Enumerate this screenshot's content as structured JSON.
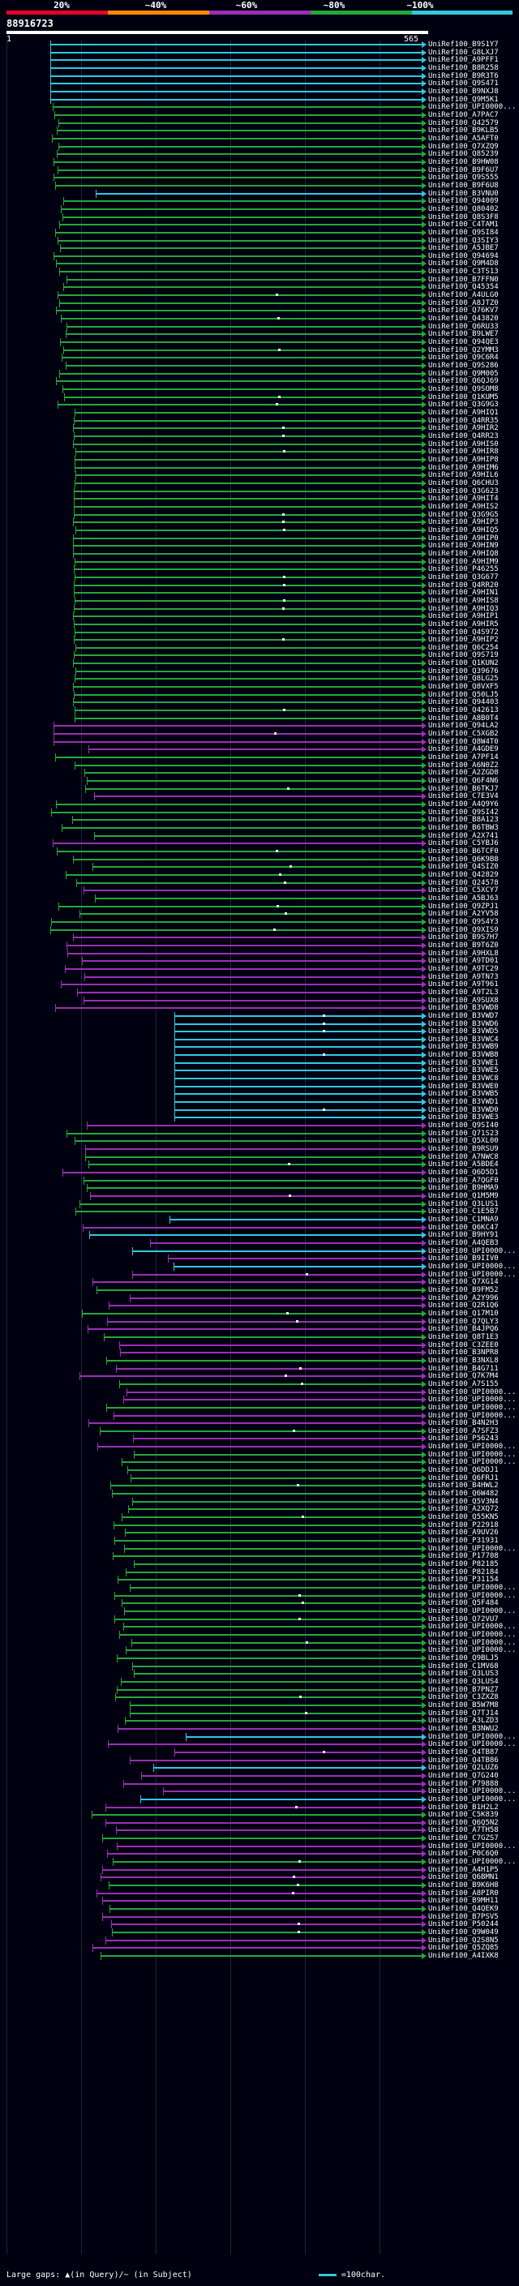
{
  "legend": {
    "labels": [
      "20%",
      "~40%",
      "~60%",
      "~80%",
      "~100%"
    ],
    "colors": [
      "#e8002a",
      "#ff8a00",
      "#9b2fb4",
      "#22a83a",
      "#30c8e0"
    ]
  },
  "query": {
    "id": "88916723",
    "start": "1",
    "end": "565"
  },
  "footer": {
    "large_gaps": "Large gaps: ▲(in Query)/~ (in Subject)",
    "scale": "=100char."
  },
  "hits": [
    "UniRef100_B9S1Y7",
    "UniRef100_G8LXJ7",
    "UniRef100_A9PFF1",
    "UniRef100_B8R258",
    "UniRef100_B9R3T6",
    "UniRef100_Q9S471",
    "UniRef100_B9NXJ8",
    "UniRef100_Q9M5K1",
    "UniRef100_UPI0000...",
    "UniRef100_A7PAC7",
    "UniRef100_Q42579",
    "UniRef100_B9KLB5",
    "UniRef100_A5AFT0",
    "UniRef100_Q7XZQ9",
    "UniRef100_Q85239",
    "UniRef100_B9HW08",
    "UniRef100_B9F6U7",
    "UniRef100_Q9S555",
    "UniRef100_B9F6U8",
    "UniRef100_B3VNU0",
    "UniRef100_Q94009",
    "UniRef100_Q80402",
    "UniRef100_Q8S3F8",
    "UniRef100_C4TAM1",
    "UniRef100_Q9SI84",
    "UniRef100_Q3SIY3",
    "UniRef100_A5JBE7",
    "UniRef100_Q94694",
    "UniRef100_Q9M4D8",
    "UniRef100_C3TS13",
    "UniRef100_B7FFN0",
    "UniRef100_Q45354",
    "UniRef100_A4ULG0",
    "UniRef100_A8JTZ0",
    "UniRef100_Q76KV7",
    "UniRef100_Q43820",
    "UniRef100_Q6RU33",
    "UniRef100_B9LWE7",
    "UniRef100_Q94QE3",
    "UniRef100_Q2YMM3",
    "UniRef100_Q9C6R4",
    "UniRef100_Q9S286",
    "UniRef100_Q9M005",
    "UniRef100_Q6QJ69",
    "UniRef100_Q9SOM8",
    "UniRef100_Q1KUM5",
    "UniRef100_Q3G9G3",
    "UniRef100_A9HIQ1",
    "UniRef100_Q4RR35",
    "UniRef100_A9HIR2",
    "UniRef100_Q4RR23",
    "UniRef100_A9HIS0",
    "UniRef100_A9HIR8",
    "UniRef100_A9HIP8",
    "UniRef100_A9HIM6",
    "UniRef100_A9HIL6",
    "UniRef100_Q6CHU3",
    "UniRef100_Q3G623",
    "UniRef100_A9HIT4",
    "UniRef100_A9HIS2",
    "UniRef100_Q3G9G5",
    "UniRef100_A9HIP3",
    "UniRef100_A9HIQ5",
    "UniRef100_A9HIP0",
    "UniRef100_A9HIN9",
    "UniRef100_A9HIQ8",
    "UniRef100_A9HIM9",
    "UniRef100_P46255",
    "UniRef100_Q3G677",
    "UniRef100_Q4RR20",
    "UniRef100_A9HIN1",
    "UniRef100_A9HIS8",
    "UniRef100_A9HIQ3",
    "UniRef100_A9HIP1",
    "UniRef100_A9HIR5",
    "UniRef100_Q4S972",
    "UniRef100_A9HIP2",
    "UniRef100_Q6C254",
    "UniRef100_Q9S719",
    "UniRef100_Q1KUN2",
    "UniRef100_Q39676",
    "UniRef100_Q8LG25",
    "UniRef100_Q8VXF5",
    "UniRef100_Q50LJ5",
    "UniRef100_Q94403",
    "UniRef100_Q42613",
    "UniRef100_A8B0T4",
    "UniRef100_Q94LA2",
    "UniRef100_C5XGB2",
    "UniRef100_Q8W4T0",
    "UniRef100_A4GDE9",
    "UniRef100_A7PF14",
    "UniRef100_A6N0Z2",
    "UniRef100_A2ZGD8",
    "UniRef100_Q6F4N6",
    "UniRef100_B6TKJ7",
    "UniRef100_C7E3V4",
    "UniRef100_A4Q9Y6",
    "UniRef100_Q9SI42",
    "UniRef100_B8A123",
    "UniRef100_B6TBW3",
    "UniRef100_A2X741",
    "UniRef100_C5YBJ6",
    "UniRef100_B6TCF0",
    "UniRef100_Q6K9B8",
    "UniRef100_Q4SIZ0",
    "UniRef100_Q42829",
    "UniRef100_Q24578",
    "UniRef100_C5XCY7",
    "UniRef100_A5BJ63",
    "UniRef100_Q9ZPJ1",
    "UniRef100_A2YV58",
    "UniRef100_Q9S4Y3",
    "UniRef100_Q9XIS9",
    "UniRef100_B9S7H7",
    "UniRef100_B9T6Z0",
    "UniRef100_A9HXL8",
    "UniRef100_A9TD01",
    "UniRef100_A9TC29",
    "UniRef100_A9TN73",
    "UniRef100_A9T961",
    "UniRef100_A9T2L3",
    "UniRef100_A9SUX8",
    "UniRef100_B3VWD8",
    "UniRef100_B3VWD7",
    "UniRef100_B3VWD6",
    "UniRef100_B3VWD5",
    "UniRef100_B3VWC4",
    "UniRef100_B3VWB9",
    "UniRef100_B3VWB8",
    "UniRef100_B3VWE1",
    "UniRef100_B3VWE5",
    "UniRef100_B3VWC8",
    "UniRef100_B3VWE0",
    "UniRef100_B3VWB5",
    "UniRef100_B3VWD1",
    "UniRef100_B3VWD0",
    "UniRef100_B3VWE3",
    "UniRef100_Q9SI40",
    "UniRef100_Q71S23",
    "UniRef100_Q5XL00",
    "UniRef100_B9RSU9",
    "UniRef100_A7NWC8",
    "UniRef100_A5BDE4",
    "UniRef100_Q6D5D1",
    "UniRef100_A7QGF0",
    "UniRef100_B9HMA9",
    "UniRef100_Q1M5M9",
    "UniRef100_Q3LUS1",
    "UniRef100_C1E5B7",
    "UniRef100_C1MNA9",
    "UniRef100_Q6KC47",
    "UniRef100_B9HY91",
    "UniRef100_A4QEB3",
    "UniRef100_UPI0000...",
    "UniRef100_B9IIV0",
    "UniRef100_UPI0000...",
    "UniRef100_UPI0000...",
    "UniRef100_Q7XG14",
    "UniRef100_B9FM52",
    "UniRef100_A2Y996",
    "UniRef100_Q2R1Q6",
    "UniRef100_Q17M10",
    "UniRef100_Q7QLY3",
    "UniRef100_B4JPQ6",
    "UniRef100_Q8T1E3",
    "UniRef100_C3ZEE0",
    "UniRef100_B3NPR8",
    "UniRef100_B3NXL8",
    "UniRef100_B4G711",
    "UniRef100_Q7K7M4",
    "UniRef100_A7S155",
    "UniRef100_UPI0000...",
    "UniRef100_UPI0000...",
    "UniRef100_UPI0000...",
    "UniRef100_UPI0000...",
    "UniRef100_B4N2H3",
    "UniRef100_A7SFZ3",
    "UniRef100_P56243",
    "UniRef100_UPI0000...",
    "UniRef100_UPI0000...",
    "UniRef100_UPI0000...",
    "UniRef100_Q6DDJ1",
    "UniRef100_Q6FRJ1",
    "UniRef100_B4HWL2",
    "UniRef100_Q6W482",
    "UniRef100_Q5V3N4",
    "UniRef100_A2XQ72",
    "UniRef100_Q55KN5",
    "UniRef100_P22918",
    "UniRef100_A9UV26",
    "UniRef100_P31931",
    "UniRef100_UPI0000...",
    "UniRef100_P17708",
    "UniRef100_P82185",
    "UniRef100_P82184",
    "UniRef100_P31154",
    "UniRef100_UPI0000...",
    "UniRef100_UPI0000...",
    "UniRef100_Q5F484",
    "UniRef100_UPI0000...",
    "UniRef100_Q72VU7",
    "UniRef100_UPI0000...",
    "UniRef100_UPI0000...",
    "UniRef100_UPI0000...",
    "UniRef100_UPI0000...",
    "UniRef100_Q9BLJ5",
    "UniRef100_C1MV68",
    "UniRef100_Q3LUS3",
    "UniRef100_Q3LUS4",
    "UniRef100_B7PNZ7",
    "UniRef100_C3ZXZ8",
    "UniRef100_B5W7M8",
    "UniRef100_Q7TJ14",
    "UniRef100_A3LZD3",
    "UniRef100_B3NWU2",
    "UniRef100_UPI0000...",
    "UniRef100_UPI0000...",
    "UniRef100_Q4TB87",
    "UniRef100_Q4TB86",
    "UniRef100_Q2LUZ6",
    "UniRef100_Q7G240",
    "UniRef100_P79888",
    "UniRef100_UPI0000...",
    "UniRef100_UPI0000...",
    "UniRef100_B1H2L2",
    "UniRef100_C5K839",
    "UniRef100_Q6Q5N2",
    "UniRef100_A7TH58",
    "UniRef100_C7GZS7",
    "UniRef100_UPI0000...",
    "UniRef100_P0C6Q0",
    "UniRef100_UPI0000...",
    "UniRef100_A4H1P5",
    "UniRef100_Q6BMN1",
    "UniRef100_B9K6H8",
    "UniRef100_A8PIR0",
    "UniRef100_B9MH11",
    "UniRef100_Q4QEK9",
    "UniRef100_B7PSV5",
    "UniRef100_P50244",
    "UniRef100_Q9W049",
    "UniRef100_Q2S8N5",
    "UniRef100_Q5ZQ85",
    "UniRef100_A4IXK8"
  ]
}
